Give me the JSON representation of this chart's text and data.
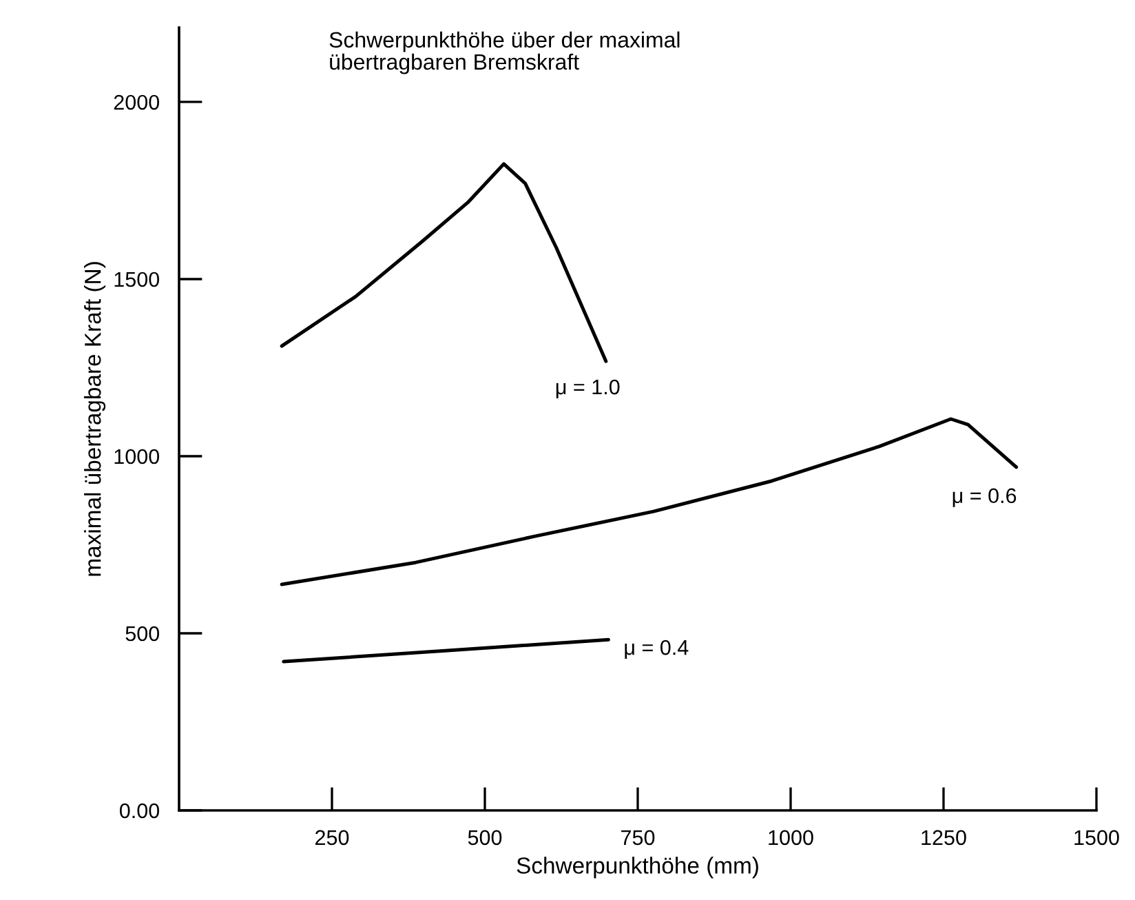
{
  "chart_data": {
    "type": "line",
    "title": "Schwerpunkthöhe über der maximal\nübertragbaren Bremskraft",
    "xlabel": "Schwerpunkthöhe (mm)",
    "ylabel": "maximal übertragbare Kraft (N)",
    "xlim": [
      0,
      1500
    ],
    "ylim": [
      0,
      2210
    ],
    "xticks": [
      250,
      500,
      750,
      1000,
      1250,
      1500
    ],
    "yticks": [
      {
        "value": 0,
        "label": "0.00"
      },
      500,
      1000,
      1500,
      2000
    ],
    "grid": false,
    "legend": false,
    "marker": "none",
    "line_style": "solid",
    "series": [
      {
        "name": "μ = 1.0",
        "color": "#000000",
        "x": [
          168,
          289,
          398,
          472,
          531,
          566,
          617,
          698
        ],
        "values": [
          1311,
          1451,
          1607,
          1716,
          1825,
          1770,
          1588,
          1268
        ]
      },
      {
        "name": "μ = 0.6",
        "color": "#000000",
        "x": [
          168,
          387,
          582,
          776,
          969,
          1144,
          1262,
          1290,
          1369
        ],
        "values": [
          638,
          700,
          774,
          844,
          930,
          1027,
          1105,
          1089,
          969
        ]
      },
      {
        "name": "μ = 0.4",
        "color": "#000000",
        "x": [
          171,
          435,
          702
        ],
        "values": [
          420,
          451,
          482
        ]
      }
    ]
  }
}
